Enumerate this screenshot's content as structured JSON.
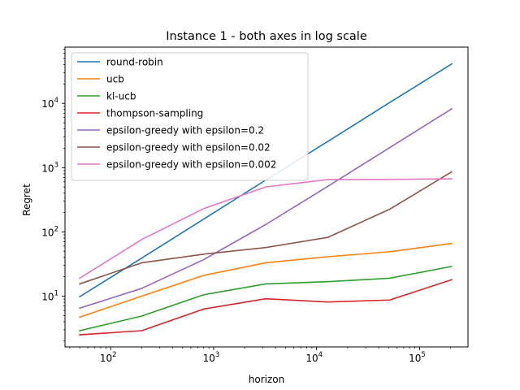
{
  "chart_data": {
    "type": "line",
    "title": "Instance 1 - both axes in log scale",
    "xlabel": "horizon",
    "ylabel": "Regret",
    "xscale": "log",
    "yscale": "log",
    "xlim": [
      36,
      295000
    ],
    "ylim": [
      1.62,
      75000
    ],
    "grid": false,
    "legend_position": "top-left",
    "x": [
      50,
      200,
      800,
      3200,
      12800,
      51200,
      204800
    ],
    "x_ticks": [
      {
        "value": 100,
        "base": "10",
        "exp": "2"
      },
      {
        "value": 1000,
        "base": "10",
        "exp": "3"
      },
      {
        "value": 10000,
        "base": "10",
        "exp": "4"
      },
      {
        "value": 100000,
        "base": "10",
        "exp": "5"
      }
    ],
    "y_ticks": [
      {
        "value": 10,
        "base": "10",
        "exp": "1"
      },
      {
        "value": 100,
        "base": "10",
        "exp": "2"
      },
      {
        "value": 1000,
        "base": "10",
        "exp": "3"
      },
      {
        "value": 10000,
        "base": "10",
        "exp": "4"
      }
    ],
    "series": [
      {
        "name": "round-robin",
        "color": "#1f77b4",
        "values": [
          9.8,
          39,
          158,
          640,
          2550,
          10300,
          41000
        ]
      },
      {
        "name": "ucb",
        "color": "#ff7f0e",
        "values": [
          4.7,
          10,
          21,
          33,
          41,
          49,
          66
        ]
      },
      {
        "name": "kl-ucb",
        "color": "#2ca02c",
        "values": [
          2.9,
          4.9,
          10.5,
          15.5,
          16.8,
          19,
          29
        ]
      },
      {
        "name": "thompson-sampling",
        "color": "#d62728",
        "values": [
          2.5,
          2.9,
          6.3,
          9.1,
          8.1,
          8.7,
          18
        ]
      },
      {
        "name": "epsilon-greedy with epsilon=0.2",
        "color": "#9467bd",
        "values": [
          6.5,
          13.2,
          37,
          130,
          510,
          2050,
          8200
        ]
      },
      {
        "name": "epsilon-greedy with epsilon=0.02",
        "color": "#8c564b",
        "values": [
          15.5,
          33,
          45,
          57,
          82,
          225,
          860
        ]
      },
      {
        "name": "epsilon-greedy with epsilon=0.002",
        "color": "#e377c2",
        "values": [
          19,
          76,
          230,
          500,
          650,
          655,
          670
        ]
      }
    ]
  }
}
